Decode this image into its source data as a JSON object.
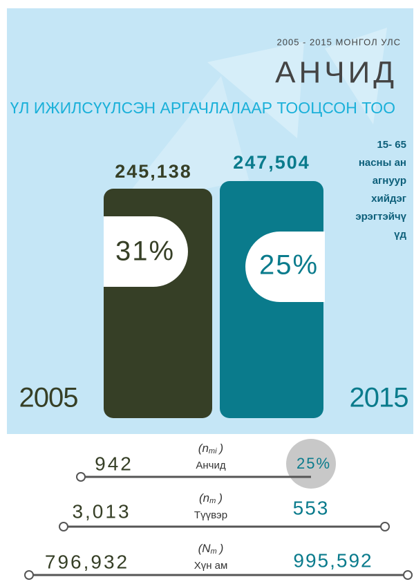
{
  "header": {
    "subtitle": "2005 - 2015 МОНГОЛ УЛС",
    "title": "АНЧИД",
    "heading": "ҮЛ ИЖИЛСҮҮЛСЭН АРГАЧЛАЛААР ТООЦСОН ТОО"
  },
  "note": [
    "15- 65",
    "насны ан",
    "агнуур",
    "хийдэг",
    "эрэгтэйчү",
    "үд"
  ],
  "bars": [
    {
      "year": "2005",
      "total": "245,138",
      "share": "31%"
    },
    {
      "year": "2015",
      "total": "247,504",
      "share": "25%"
    }
  ],
  "rows": [
    {
      "left": "942",
      "symbol": {
        "base": "(n",
        "sub": "mi",
        "close": ")"
      },
      "label": "Анчид",
      "right": "25%"
    },
    {
      "left": "3,013",
      "symbol": {
        "base": "(n",
        "sub": "m",
        "close": ")"
      },
      "label": "Түүвэр",
      "right": "553"
    },
    {
      "left": "796,932",
      "symbol": {
        "base": "(N",
        "sub": "m",
        "close": ")"
      },
      "label": "Хүн ам",
      "right": "995,592"
    }
  ]
}
